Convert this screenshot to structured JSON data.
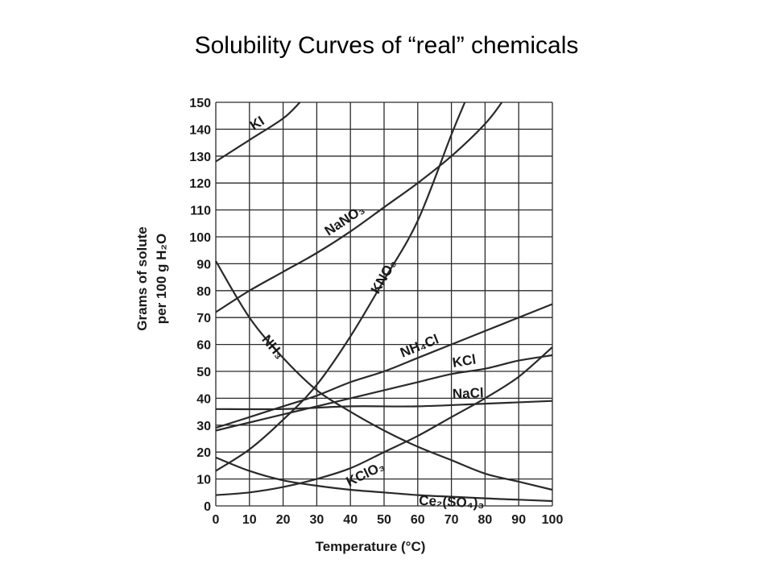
{
  "title": "Solubility Curves of “real” chemicals",
  "chart_data": {
    "type": "line",
    "xlabel": "Temperature (°C)",
    "ylabel_line1": "Grams of solute",
    "ylabel_line2": "per 100 g H₂O",
    "xlim": [
      0,
      100
    ],
    "ylim": [
      0,
      150
    ],
    "x_ticks": [
      0,
      10,
      20,
      30,
      40,
      50,
      60,
      70,
      80,
      90,
      100
    ],
    "y_ticks": [
      0,
      10,
      20,
      30,
      40,
      50,
      60,
      70,
      80,
      90,
      100,
      110,
      120,
      130,
      140,
      150
    ],
    "grid": true,
    "series": [
      {
        "name": "KI",
        "x": [
          0,
          10,
          20,
          25
        ],
        "values": [
          128,
          136,
          144,
          150
        ]
      },
      {
        "name": "NaNO₃",
        "x": [
          0,
          10,
          20,
          30,
          40,
          50,
          60,
          70,
          80,
          85
        ],
        "values": [
          72,
          80,
          87,
          94,
          102,
          111,
          120,
          130,
          142,
          150
        ]
      },
      {
        "name": "KNO₃",
        "x": [
          0,
          10,
          20,
          30,
          40,
          50,
          60,
          70,
          74
        ],
        "values": [
          13,
          21,
          32,
          45,
          63,
          84,
          106,
          138,
          150
        ]
      },
      {
        "name": "NH₃",
        "x": [
          0,
          10,
          20,
          30,
          40,
          50,
          60,
          70,
          80,
          90,
          100
        ],
        "values": [
          91,
          70,
          55,
          43,
          35,
          28,
          22,
          17,
          12,
          9,
          6
        ]
      },
      {
        "name": "NH₄Cl",
        "x": [
          0,
          10,
          20,
          30,
          40,
          50,
          60,
          70,
          80,
          90,
          100
        ],
        "values": [
          29,
          33,
          37,
          41,
          46,
          50,
          55,
          60,
          65,
          70,
          75
        ]
      },
      {
        "name": "KCl",
        "x": [
          0,
          10,
          20,
          30,
          40,
          50,
          60,
          70,
          80,
          90,
          100
        ],
        "values": [
          28,
          31,
          34,
          37,
          40,
          43,
          46,
          49,
          51,
          54,
          56
        ]
      },
      {
        "name": "NaCl",
        "x": [
          0,
          20,
          40,
          60,
          80,
          100
        ],
        "values": [
          36,
          36,
          37,
          37,
          38,
          39
        ]
      },
      {
        "name": "KClO₃",
        "x": [
          0,
          10,
          20,
          30,
          40,
          50,
          60,
          70,
          80,
          90,
          100
        ],
        "values": [
          4,
          5,
          7,
          10,
          14,
          20,
          26,
          33,
          40,
          48,
          59
        ]
      },
      {
        "name": "Ce₂(SO₄)₃",
        "x": [
          0,
          10,
          20,
          30,
          40,
          50,
          60,
          70,
          80,
          90,
          100
        ],
        "values": [
          18,
          13,
          9.5,
          7.5,
          6,
          5,
          4,
          3.4,
          2.8,
          2.3,
          1.8
        ]
      }
    ]
  }
}
